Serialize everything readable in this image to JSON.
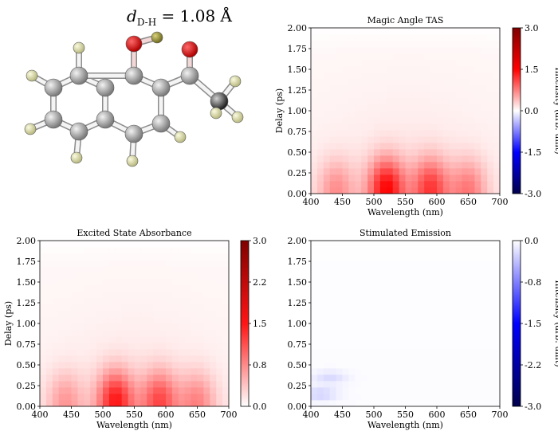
{
  "figure": {
    "molecule_label": {
      "var": "d",
      "sub": "D-H",
      "rest": " = 1.08 Å"
    },
    "molecule_atoms": [
      {
        "el": "O",
        "label": "O"
      },
      {
        "el": "D",
        "label": "D"
      },
      {
        "el": "O",
        "label": "O"
      }
    ]
  },
  "chart_data": [
    {
      "type": "heatmap",
      "title": "Magic Angle TAS",
      "xlabel": "Wavelength (nm)",
      "ylabel": "Delay (ps)",
      "xlim": [
        400,
        700
      ],
      "ylim": [
        0,
        2
      ],
      "x_ticks": [
        400,
        450,
        500,
        550,
        600,
        650,
        700
      ],
      "y_ticks": [
        "0.00",
        "0.25",
        "0.50",
        "0.75",
        "1.00",
        "1.25",
        "1.50",
        "1.75",
        "2.00"
      ],
      "colorbar": {
        "label": "Intensity (arb. unit)",
        "min": -3.0,
        "max": 3.0,
        "ticks": [
          "3.0",
          "1.5",
          "0.0",
          "-1.5",
          "-3.0"
        ],
        "colormap": "seismic"
      },
      "peaks": [
        {
          "wavelength": 520,
          "delay": 0.08,
          "intensity": 1.2
        },
        {
          "wavelength": 590,
          "delay": 0.08,
          "intensity": 0.9
        },
        {
          "wavelength": 650,
          "delay": 0.06,
          "intensity": 0.6
        },
        {
          "wavelength": 440,
          "delay": 0.06,
          "intensity": 0.5
        }
      ],
      "baseline_intensity": 0.1
    },
    {
      "type": "heatmap",
      "title": "Excited State Absorbance",
      "xlabel": "Wavelength (nm)",
      "ylabel": "Delay (ps)",
      "xlim": [
        400,
        700
      ],
      "ylim": [
        0,
        2
      ],
      "x_ticks": [
        400,
        450,
        500,
        550,
        600,
        650,
        700
      ],
      "y_ticks": [
        "0.00",
        "0.25",
        "0.50",
        "0.75",
        "1.00",
        "1.25",
        "1.50",
        "1.75",
        "2.00"
      ],
      "colorbar": {
        "label": "",
        "min": 0.0,
        "max": 3.0,
        "ticks": [
          "3.0",
          "2.2",
          "1.5",
          "0.8",
          "0.0"
        ],
        "colormap": "reds"
      },
      "peaks": [
        {
          "wavelength": 520,
          "delay": 0.08,
          "intensity": 1.2
        },
        {
          "wavelength": 590,
          "delay": 0.08,
          "intensity": 0.9
        },
        {
          "wavelength": 650,
          "delay": 0.06,
          "intensity": 0.6
        },
        {
          "wavelength": 440,
          "delay": 0.06,
          "intensity": 0.5
        }
      ],
      "baseline_intensity": 0.1
    },
    {
      "type": "heatmap",
      "title": "Stimulated Emission",
      "xlabel": "Wavelength (nm)",
      "ylabel": "",
      "xlim": [
        400,
        700
      ],
      "ylim": [
        0,
        2
      ],
      "x_ticks": [
        400,
        450,
        500,
        550,
        600,
        650,
        700
      ],
      "y_ticks": [
        "0.00",
        "0.25",
        "0.50",
        "0.75",
        "1.00",
        "1.25",
        "1.50",
        "1.75",
        "2.00"
      ],
      "colorbar": {
        "label": "Intensity (arb. unit)",
        "min": -3.0,
        "max": 0.0,
        "ticks": [
          "0.0",
          "-0.8",
          "-1.5",
          "-2.2",
          "-3.0"
        ],
        "colormap": "blues_r"
      },
      "peaks": [
        {
          "wavelength": 415,
          "delay": 0.15,
          "intensity": -0.25
        },
        {
          "wavelength": 430,
          "delay": 0.35,
          "intensity": -0.2
        }
      ],
      "baseline_intensity": -0.02
    }
  ]
}
